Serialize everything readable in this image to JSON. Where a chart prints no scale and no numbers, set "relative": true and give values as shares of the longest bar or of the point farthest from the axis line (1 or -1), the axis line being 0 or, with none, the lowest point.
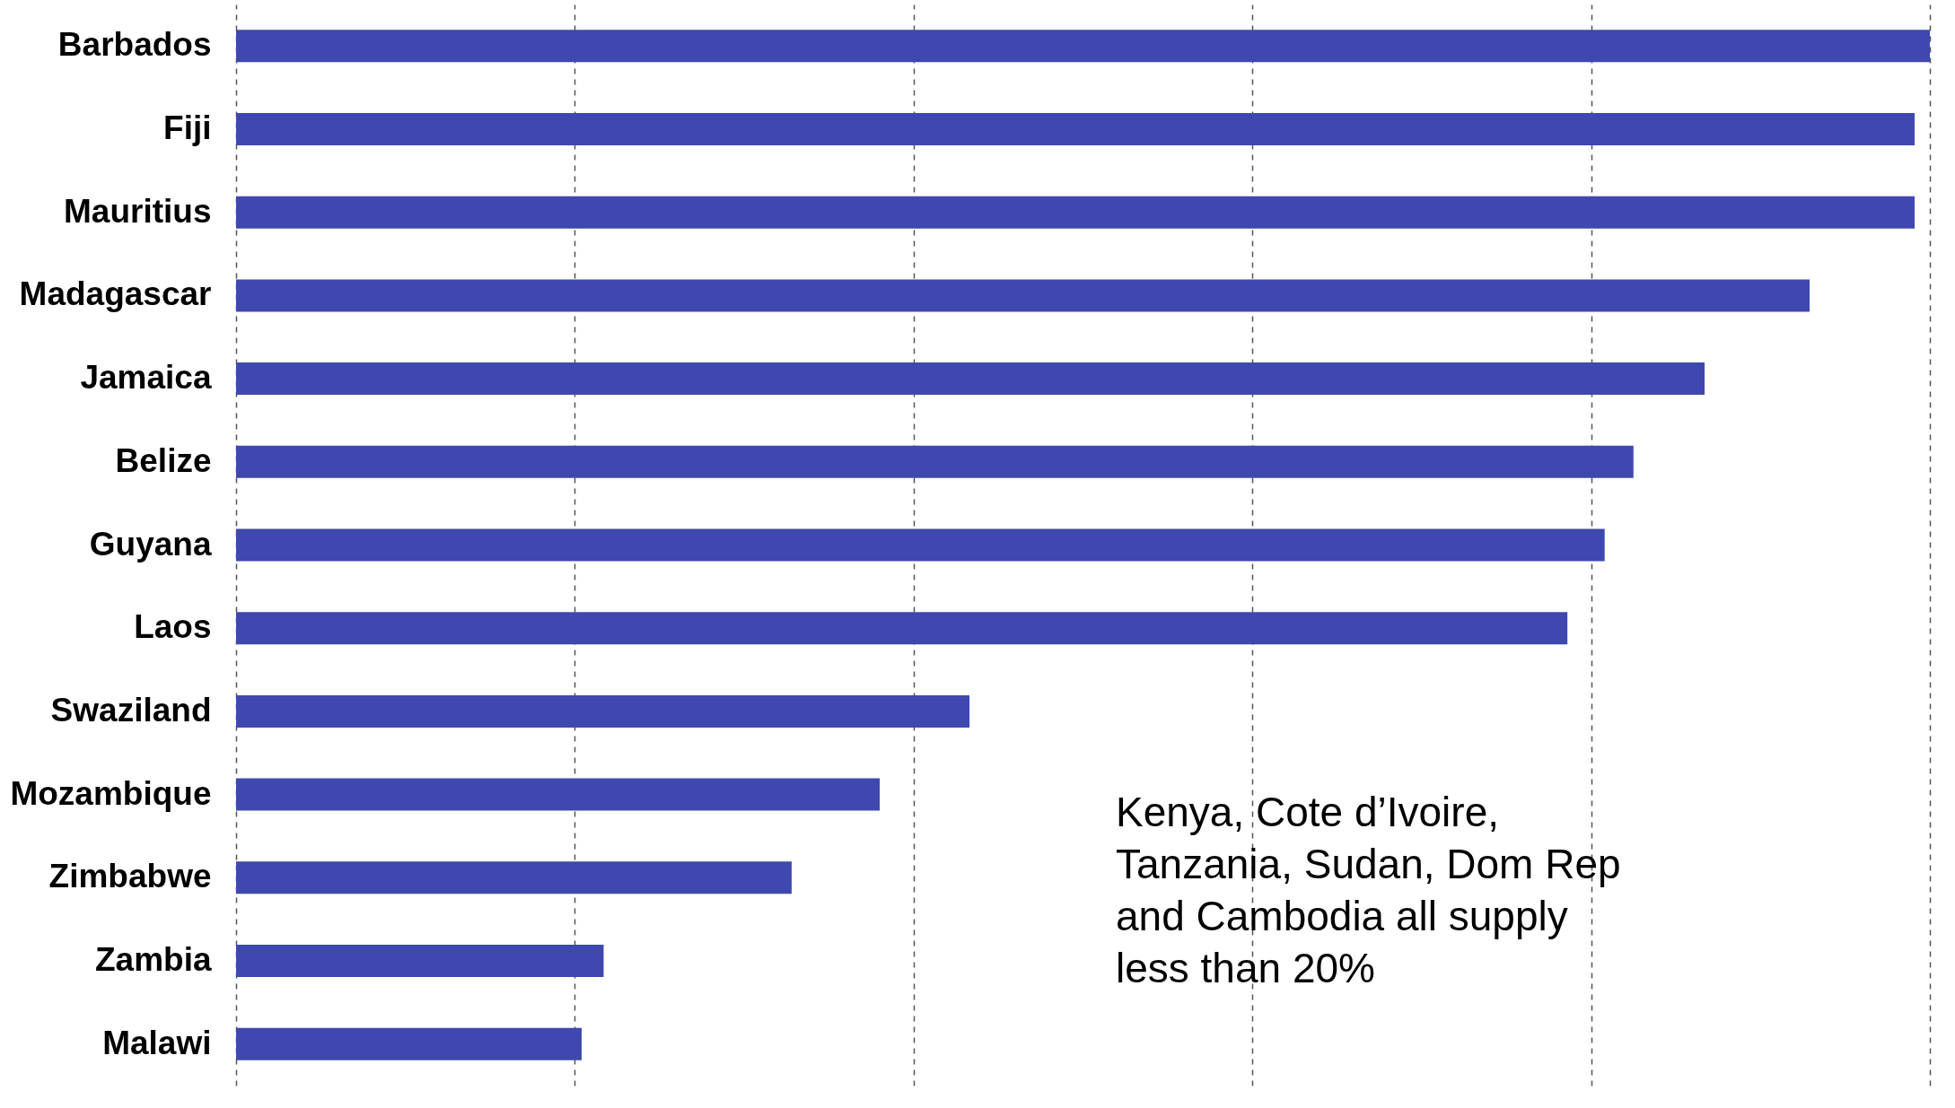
{
  "chart_data": {
    "type": "bar",
    "orientation": "horizontal",
    "relative": true,
    "grid": "x",
    "categories": [
      "Barbados",
      "Fiji",
      "Mauritius",
      "Madagascar",
      "Jamaica",
      "Belize",
      "Guyana",
      "Laos",
      "Swaziland",
      "Mozambique",
      "Zimbabwe",
      "Zambia",
      "Malawi"
    ],
    "values": [
      1,
      0.991,
      0.991,
      0.929,
      0.867,
      0.825,
      0.808,
      0.786,
      0.433,
      0.38,
      0.328,
      0.217,
      0.204
    ],
    "color": "#3f48ae",
    "annotations": [
      "Kenya, Cote d’Ivoire, Tanzania, Sudan, Dom Rep and Cambodia all supply less than 20%"
    ]
  }
}
